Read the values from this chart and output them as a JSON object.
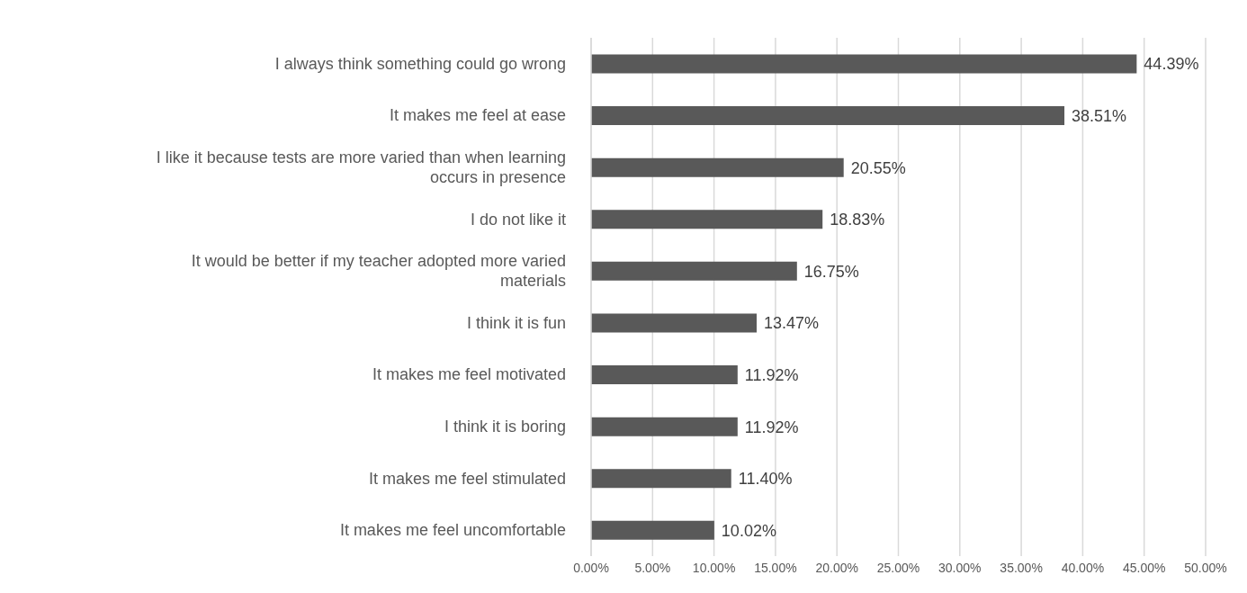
{
  "chart_data": {
    "type": "bar",
    "orientation": "horizontal",
    "categories": [
      "I always think something could go wrong",
      "It makes me feel at ease",
      "I like it because tests are more varied than when learning occurs in presence",
      "I do not like it",
      "It would be better if my teacher adopted more varied materials",
      "I think it is fun",
      "It makes me feel motivated",
      "I think it is boring",
      "It makes me feel stimulated",
      "It makes me feel uncomfortable"
    ],
    "values": [
      44.39,
      38.51,
      20.55,
      18.83,
      16.75,
      13.47,
      11.92,
      11.92,
      11.4,
      10.02
    ],
    "value_labels": [
      "44.39%",
      "38.51%",
      "20.55%",
      "18.83%",
      "16.75%",
      "13.47%",
      "11.92%",
      "11.92%",
      "11.40%",
      "10.02%"
    ],
    "color": "#595959",
    "xlim": [
      0,
      50
    ],
    "xticks": [
      {
        "value": 0,
        "label": "0.00%"
      },
      {
        "value": 5,
        "label": "5.00%"
      },
      {
        "value": 10,
        "label": "10.00%"
      },
      {
        "value": 15,
        "label": "15.00%"
      },
      {
        "value": 20,
        "label": "20.00%"
      },
      {
        "value": 25,
        "label": "25.00%"
      },
      {
        "value": 30,
        "label": "30.00%"
      },
      {
        "value": 35,
        "label": "35.00%"
      },
      {
        "value": 40,
        "label": "40.00%"
      },
      {
        "value": 45,
        "label": "45.00%"
      },
      {
        "value": 50,
        "label": "50.00%"
      }
    ],
    "grid": "x"
  }
}
